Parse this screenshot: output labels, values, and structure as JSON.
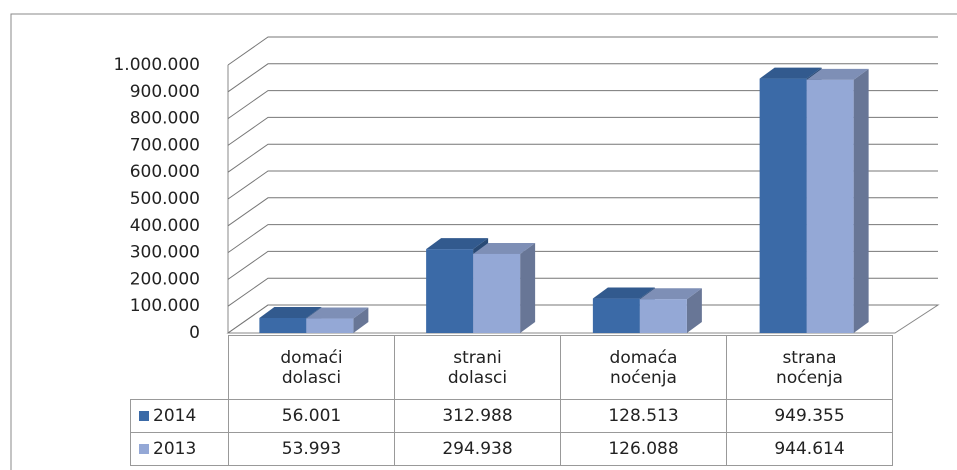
{
  "chart_data": {
    "type": "bar3d",
    "categories": [
      "domaći dolasci",
      "strani dolasci",
      "domaća noćenja",
      "strana noćenja"
    ],
    "series": [
      {
        "name": "2014",
        "color": "#3b6aa7",
        "values": [
          56001,
          312988,
          128513,
          949355
        ],
        "value_labels": [
          "56.001",
          "312.988",
          "128.513",
          "949.355"
        ]
      },
      {
        "name": "2013",
        "color": "#94a8d6",
        "values": [
          53993,
          294938,
          126088,
          944614
        ],
        "value_labels": [
          "53.993",
          "294.938",
          "126.088",
          "944.614"
        ]
      }
    ],
    "ylim": [
      0,
      1000000
    ],
    "yticks": [
      0,
      {
        "value": 100000,
        "label": "100.000"
      },
      {
        "value": 200000,
        "label": "200.000"
      },
      {
        "value": 300000,
        "label": "300.000"
      },
      {
        "value": 400000,
        "label": "400.000"
      },
      {
        "value": 500000,
        "label": "500.000"
      },
      {
        "value": 600000,
        "label": "600.000"
      },
      {
        "value": 700000,
        "label": "700.000"
      },
      {
        "value": 800000,
        "label": "800.000"
      },
      {
        "value": 900000,
        "label": "900.000"
      },
      {
        "value": 1000000,
        "label": "1.000.000"
      }
    ],
    "grid": true
  }
}
